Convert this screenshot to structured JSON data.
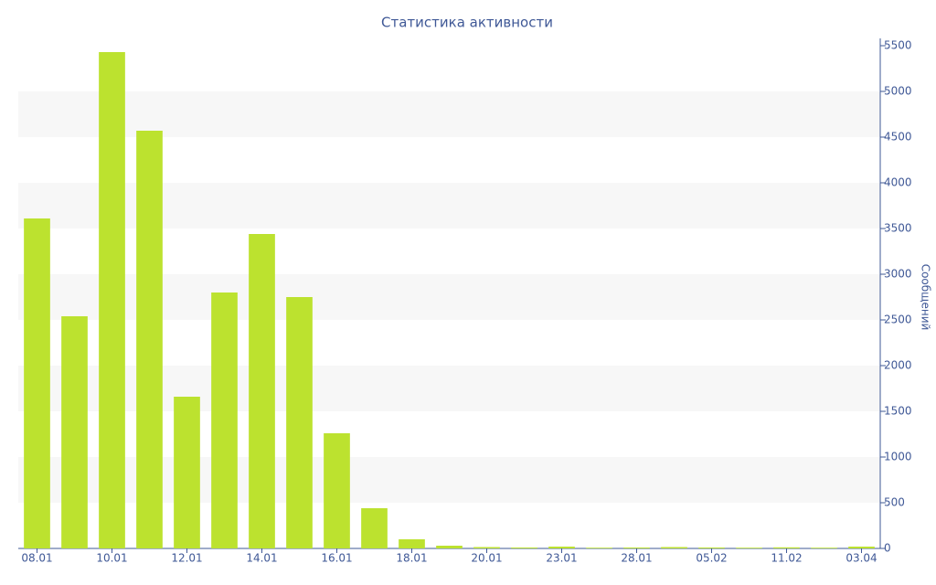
{
  "chart_data": {
    "type": "bar",
    "title": "Статистика активности",
    "y_axis_label": "Сообщений",
    "categories": [
      "08.01",
      null,
      "10.01",
      null,
      "12.01",
      null,
      "14.01",
      null,
      "16.01",
      null,
      "18.01",
      null,
      "20.01",
      null,
      "23.01",
      null,
      "28.01",
      null,
      "05.02",
      null,
      "11.02",
      null,
      "03.04"
    ],
    "values": [
      3610,
      2540,
      5430,
      4570,
      1660,
      2800,
      3440,
      2750,
      1260,
      440,
      100,
      30,
      15,
      10,
      20,
      8,
      10,
      15,
      10,
      8,
      12,
      8,
      20
    ],
    "color": "#bce22f",
    "ylim": [
      0,
      5500
    ],
    "yticks": [
      0,
      500,
      1000,
      1500,
      2000,
      2500,
      3000,
      3500,
      4000,
      4500,
      5000,
      5500
    ],
    "y_axis_side": "right",
    "grid": "bands"
  }
}
